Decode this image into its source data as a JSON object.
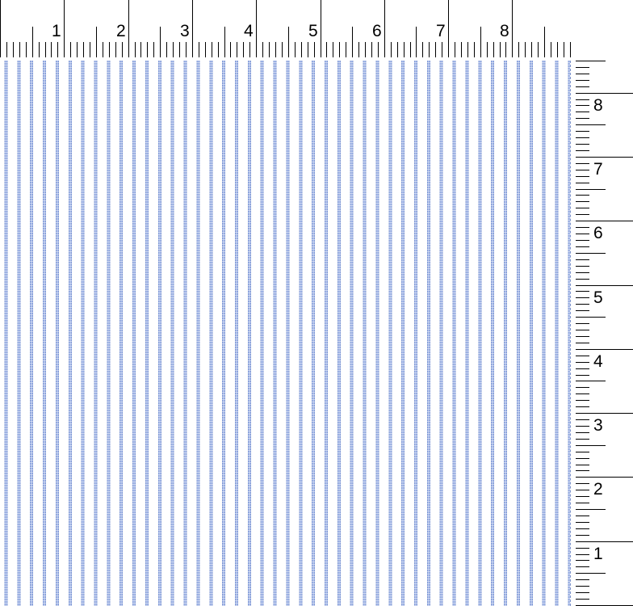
{
  "top_ruler": {
    "labels": [
      "1",
      "2",
      "3",
      "4",
      "5",
      "6",
      "7",
      "8"
    ]
  },
  "side_ruler": {
    "labels": [
      "1",
      "2",
      "3",
      "4",
      "5",
      "6",
      "7",
      "8"
    ]
  },
  "fabric": {
    "pattern": "vertical-pinstripe",
    "stripe_color": "#8099d6",
    "background": "#ffffff"
  }
}
